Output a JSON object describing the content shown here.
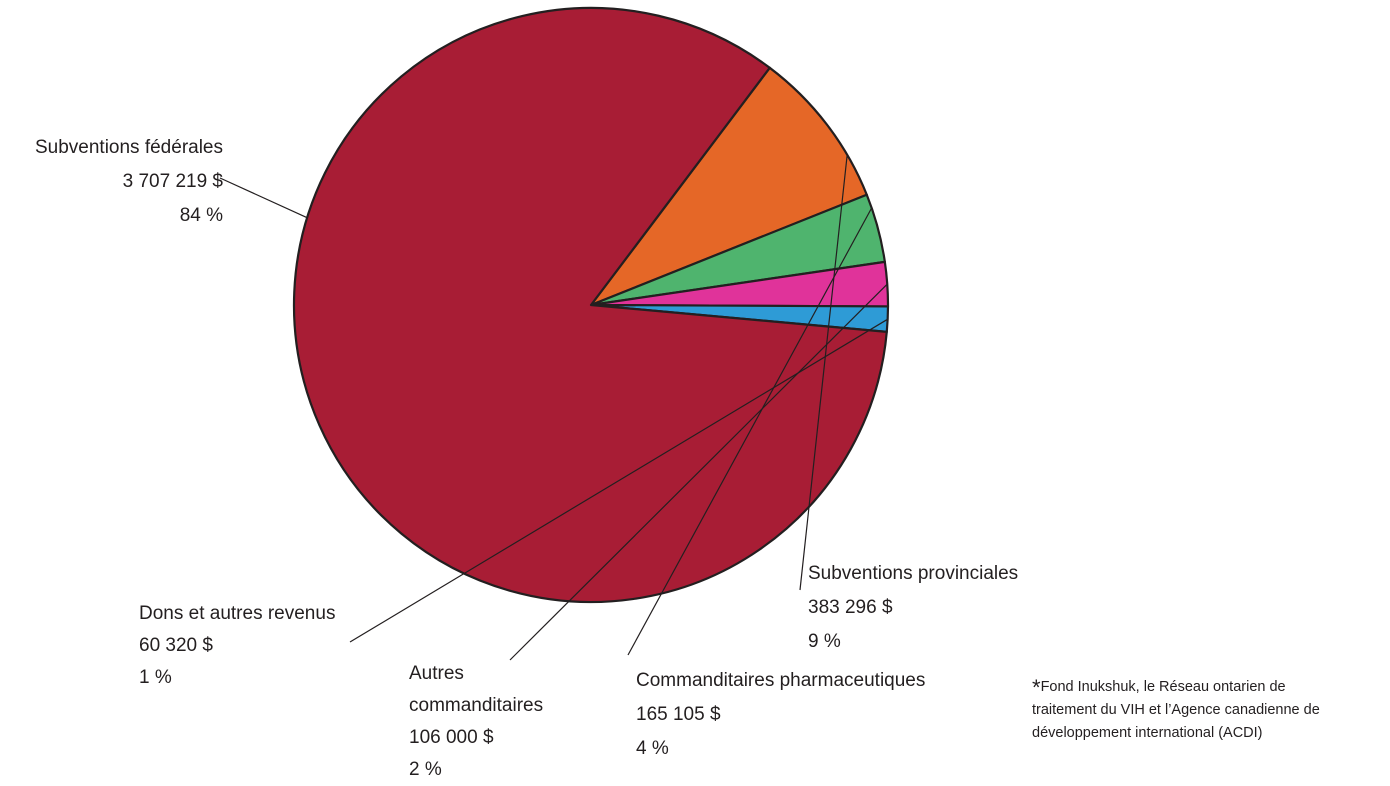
{
  "chart_data": {
    "type": "pie",
    "slices": [
      {
        "label": "Subventions fédérales",
        "amount": "3 707 219 $",
        "percent": "84 %",
        "value": 3707219,
        "color": "#a81d35"
      },
      {
        "label": "Subventions provinciales",
        "amount": "383 296 $",
        "percent": "9 %",
        "value": 383296,
        "color": "#e56727"
      },
      {
        "label": "Commanditaires pharmaceutiques",
        "amount": "165 105 $",
        "percent": "4 %",
        "value": 165105,
        "color": "#4fb46e"
      },
      {
        "label": "Autres commanditaires",
        "label_lines": [
          "Autres",
          "commanditaires"
        ],
        "amount": "106 000 $",
        "percent": "2 %",
        "value": 106000,
        "color": "#e0339a"
      },
      {
        "label": "Dons et autres revenus",
        "amount": "60 320 $",
        "percent": "1 %",
        "value": 60320,
        "color": "#2e9bd6"
      }
    ],
    "footnote": {
      "marker": "*",
      "lines": [
        "Fond Inukshuk, le Réseau ontarien de",
        "traitement du VIH et l’Agence canadienne de",
        "développement international (ACDI)"
      ]
    }
  }
}
